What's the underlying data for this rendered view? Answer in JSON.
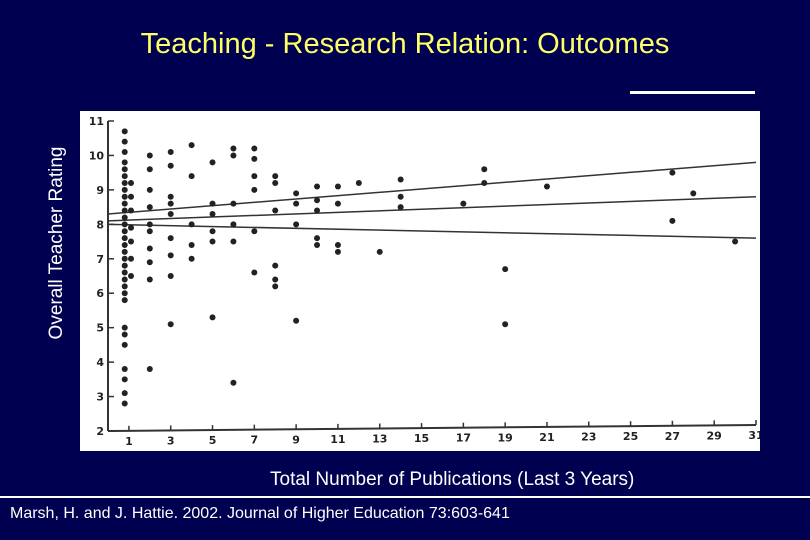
{
  "slide": {
    "title": "Teaching - Research Relation: Outcomes",
    "citation": "Marsh, H. and J. Hattie. 2002. Journal of Higher Education 73:603-641"
  },
  "colors": {
    "background": "#000050",
    "title": "#ffff66",
    "text": "#ffffff",
    "plot_bg": "#ffffff",
    "marks": "#222222"
  },
  "chart_data": {
    "type": "scatter",
    "title": "",
    "xlabel": "Total Number of Publications (Last 3 Years)",
    "ylabel": "Overall Teacher Rating",
    "xlim": [
      0,
      31
    ],
    "ylim": [
      2,
      11
    ],
    "x_ticks": [
      "1",
      "3",
      "5",
      "7",
      "9",
      "11",
      "13",
      "15",
      "17",
      "19",
      "21",
      "23",
      "25",
      "27",
      "29",
      "31"
    ],
    "y_ticks": [
      "2",
      "3",
      "4",
      "5",
      "6",
      "7",
      "8",
      "9",
      "10",
      "11"
    ],
    "grid": false,
    "points": [
      [
        0.8,
        10.7
      ],
      [
        0.8,
        10.4
      ],
      [
        0.8,
        10.1
      ],
      [
        0.8,
        9.8
      ],
      [
        0.8,
        9.6
      ],
      [
        0.8,
        9.4
      ],
      [
        0.8,
        9.2
      ],
      [
        0.8,
        9.0
      ],
      [
        0.8,
        8.8
      ],
      [
        0.8,
        8.6
      ],
      [
        0.8,
        8.4
      ],
      [
        0.8,
        8.2
      ],
      [
        0.8,
        8.0
      ],
      [
        0.8,
        7.8
      ],
      [
        0.8,
        7.6
      ],
      [
        0.8,
        7.4
      ],
      [
        0.8,
        7.2
      ],
      [
        0.8,
        7.0
      ],
      [
        0.8,
        6.8
      ],
      [
        0.8,
        6.6
      ],
      [
        0.8,
        6.4
      ],
      [
        0.8,
        6.2
      ],
      [
        0.8,
        6.0
      ],
      [
        0.8,
        5.8
      ],
      [
        0.8,
        5.0
      ],
      [
        0.8,
        4.8
      ],
      [
        0.8,
        4.5
      ],
      [
        0.8,
        3.8
      ],
      [
        0.8,
        3.5
      ],
      [
        0.8,
        3.1
      ],
      [
        0.8,
        2.8
      ],
      [
        1.1,
        9.2
      ],
      [
        1.1,
        8.8
      ],
      [
        1.1,
        8.4
      ],
      [
        1.1,
        7.9
      ],
      [
        1.1,
        7.5
      ],
      [
        1.1,
        7.0
      ],
      [
        1.1,
        6.5
      ],
      [
        2,
        10.0
      ],
      [
        2,
        9.6
      ],
      [
        2,
        9.0
      ],
      [
        2,
        8.5
      ],
      [
        2,
        8.0
      ],
      [
        2,
        7.8
      ],
      [
        2,
        7.3
      ],
      [
        2,
        6.9
      ],
      [
        2,
        6.4
      ],
      [
        2,
        3.8
      ],
      [
        3,
        10.1
      ],
      [
        3,
        9.7
      ],
      [
        3,
        8.8
      ],
      [
        3,
        8.6
      ],
      [
        3,
        8.3
      ],
      [
        3,
        7.6
      ],
      [
        3,
        7.1
      ],
      [
        3,
        6.5
      ],
      [
        3,
        5.1
      ],
      [
        4,
        10.3
      ],
      [
        4,
        9.4
      ],
      [
        4,
        8.0
      ],
      [
        4,
        7.4
      ],
      [
        4,
        7.0
      ],
      [
        5,
        9.8
      ],
      [
        5,
        8.6
      ],
      [
        5,
        8.3
      ],
      [
        5,
        7.8
      ],
      [
        5,
        7.5
      ],
      [
        5,
        5.3
      ],
      [
        6,
        10.2
      ],
      [
        6,
        10.0
      ],
      [
        6,
        8.6
      ],
      [
        6,
        8.0
      ],
      [
        6,
        7.5
      ],
      [
        6,
        3.4
      ],
      [
        7,
        10.2
      ],
      [
        7,
        9.9
      ],
      [
        7,
        9.4
      ],
      [
        7,
        9.0
      ],
      [
        7,
        7.8
      ],
      [
        7,
        6.6
      ],
      [
        8,
        9.4
      ],
      [
        8,
        9.2
      ],
      [
        8,
        8.4
      ],
      [
        8,
        6.8
      ],
      [
        8,
        6.4
      ],
      [
        8,
        6.2
      ],
      [
        9,
        8.9
      ],
      [
        9,
        8.6
      ],
      [
        9,
        8.0
      ],
      [
        9,
        5.2
      ],
      [
        10,
        9.1
      ],
      [
        10,
        8.7
      ],
      [
        10,
        8.4
      ],
      [
        10,
        7.6
      ],
      [
        10,
        7.4
      ],
      [
        11,
        9.1
      ],
      [
        11,
        8.6
      ],
      [
        11,
        7.4
      ],
      [
        11,
        7.2
      ],
      [
        12,
        9.2
      ],
      [
        13,
        7.2
      ],
      [
        14,
        9.3
      ],
      [
        14,
        8.8
      ],
      [
        14,
        8.5
      ],
      [
        17,
        8.6
      ],
      [
        18,
        9.6
      ],
      [
        18,
        9.2
      ],
      [
        19,
        6.7
      ],
      [
        19,
        5.1
      ],
      [
        21,
        9.1
      ],
      [
        27,
        9.5
      ],
      [
        27,
        8.1
      ],
      [
        28,
        8.9
      ],
      [
        30,
        7.5
      ]
    ],
    "lines": [
      {
        "x": [
          0,
          31
        ],
        "y": [
          8.3,
          9.8
        ]
      },
      {
        "x": [
          0,
          31
        ],
        "y": [
          8.1,
          8.8
        ]
      },
      {
        "x": [
          0,
          31
        ],
        "y": [
          8.0,
          7.6
        ]
      }
    ]
  }
}
